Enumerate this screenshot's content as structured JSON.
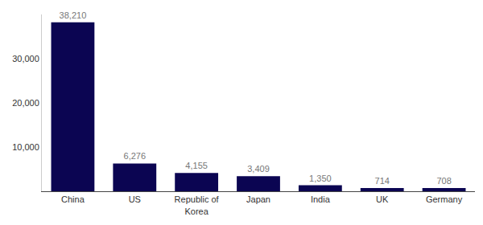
{
  "chart_data": {
    "type": "bar",
    "categories": [
      "China",
      "US",
      "Republic of Korea",
      "Japan",
      "India",
      "UK",
      "Germany"
    ],
    "values": [
      38210,
      6276,
      4155,
      3409,
      1350,
      714,
      708
    ],
    "value_labels": [
      "38,210",
      "6,276",
      "4,155",
      "3,409",
      "1,350",
      "714",
      "708"
    ],
    "color": "#0b0552",
    "ylim": [
      0,
      40000
    ],
    "yticks": [
      {
        "value": 10000,
        "label": "10,000"
      },
      {
        "value": 20000,
        "label": "20,000"
      },
      {
        "value": 30000,
        "label": "30,000"
      }
    ],
    "grid": false,
    "data_labels": true
  }
}
